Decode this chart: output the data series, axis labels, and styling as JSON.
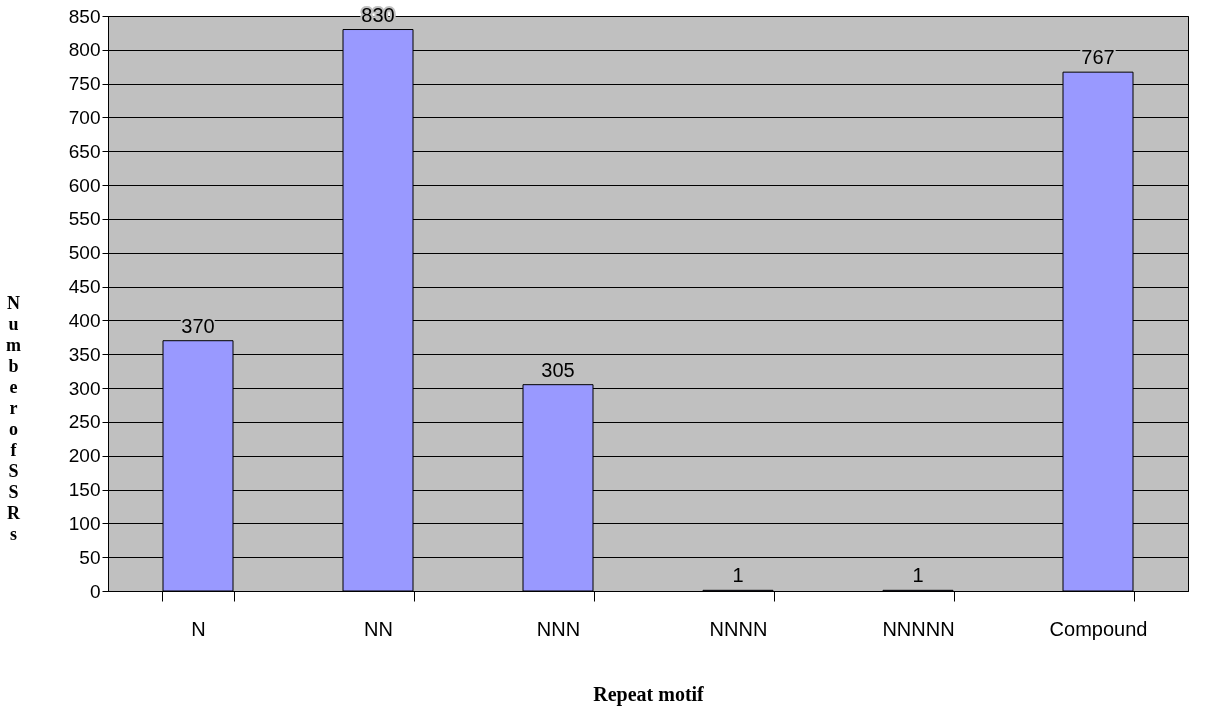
{
  "chart_data": {
    "type": "bar",
    "xlabel": "Repeat motif",
    "ylabel": "Number of SSRs",
    "categories": [
      "N",
      "NN",
      "NNN",
      "NNNN",
      "NNNNN",
      "Compound"
    ],
    "values": [
      370,
      830,
      305,
      1,
      1,
      767
    ],
    "color": "#9999ff",
    "ylim": [
      0,
      850
    ],
    "yticks": [
      0,
      50,
      100,
      150,
      200,
      250,
      300,
      350,
      400,
      450,
      500,
      550,
      600,
      650,
      700,
      750,
      800,
      850
    ],
    "grid": "y",
    "data_labels": true
  }
}
